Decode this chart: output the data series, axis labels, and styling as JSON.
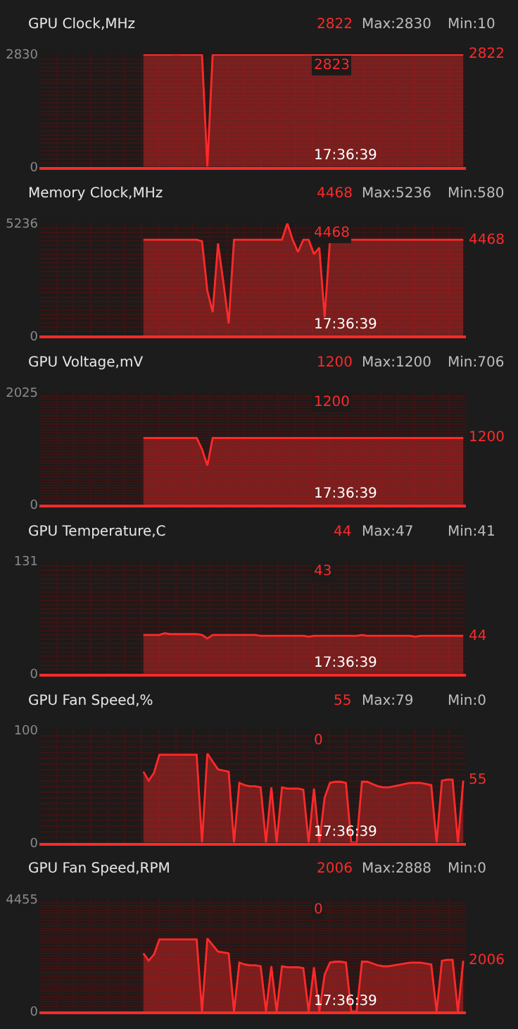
{
  "chart_data": [
    {
      "type": "area",
      "title": "GPU Clock,MHz",
      "tick_labels": "y",
      "grid": true,
      "color": "#ff2a2a",
      "ylim": [
        0,
        2830
      ],
      "yticks": [
        0,
        2830
      ],
      "categories": [
        null,
        null,
        null,
        null,
        null,
        null,
        null,
        null,
        null,
        null,
        null,
        null,
        null,
        null,
        null,
        null,
        null,
        null,
        null,
        null,
        null,
        null,
        null,
        null,
        null,
        null,
        null,
        null,
        null,
        null,
        null,
        null,
        null,
        null,
        null,
        null,
        null,
        null,
        null,
        null,
        null,
        null,
        null,
        null,
        null,
        null,
        null,
        null,
        null,
        null,
        null,
        null,
        null,
        null,
        null,
        null,
        null,
        null,
        null,
        null,
        null,
        null,
        null,
        null,
        null,
        null,
        null,
        null,
        null,
        null,
        null,
        null,
        null,
        null,
        null,
        null,
        null,
        null,
        null,
        null
      ],
      "values": [
        null,
        null,
        null,
        null,
        null,
        null,
        null,
        null,
        null,
        null,
        null,
        null,
        null,
        null,
        null,
        null,
        null,
        null,
        null,
        2822,
        2822,
        2822,
        2822,
        2822,
        2822,
        2830,
        2822,
        2822,
        2822,
        2822,
        2822,
        10,
        2822,
        2822,
        2822,
        2822,
        2822,
        2822,
        2822,
        2822,
        2822,
        2822,
        2822,
        2822,
        2822,
        2822,
        2822,
        2822,
        2822,
        2822,
        2823,
        2822,
        2822,
        2822,
        2822,
        2822,
        2822,
        2822,
        2822,
        2822,
        2822,
        2822,
        2822,
        2822,
        2822,
        2822,
        2822,
        2822,
        2822,
        2822,
        2822,
        2822,
        2822,
        2822,
        2822,
        2822,
        2822,
        2822,
        2822,
        2822
      ],
      "value_labels": [
        null,
        null,
        null,
        null,
        null,
        null,
        null,
        null,
        null,
        null,
        null,
        null,
        null,
        null,
        null,
        null,
        null,
        null,
        null,
        null,
        null,
        null,
        null,
        null,
        null,
        null,
        null,
        null,
        null,
        null,
        null,
        null,
        null,
        null,
        null,
        null,
        null,
        null,
        null,
        null,
        null,
        null,
        null,
        null,
        null,
        null,
        null,
        null,
        null,
        null,
        null,
        null,
        null,
        null,
        null,
        null,
        null,
        null,
        null,
        null,
        null,
        null,
        null,
        null,
        null,
        null,
        null,
        null,
        null,
        null,
        null,
        null,
        null,
        null,
        null,
        null,
        null,
        null,
        null,
        "2822"
      ],
      "annotations": [
        "2822",
        "Max:2830",
        "Min:10",
        "2823",
        "17:36:39"
      ]
    },
    {
      "type": "area",
      "title": "Memory Clock,MHz",
      "tick_labels": "y",
      "grid": true,
      "color": "#ff2a2a",
      "ylim": [
        0,
        5236
      ],
      "yticks": [
        0,
        5236
      ],
      "categories": [
        null,
        null,
        null,
        null,
        null,
        null,
        null,
        null,
        null,
        null,
        null,
        null,
        null,
        null,
        null,
        null,
        null,
        null,
        null,
        null,
        null,
        null,
        null,
        null,
        null,
        null,
        null,
        null,
        null,
        null,
        null,
        null,
        null,
        null,
        null,
        null,
        null,
        null,
        null,
        null,
        null,
        null,
        null,
        null,
        null,
        null,
        null,
        null,
        null,
        null,
        null,
        null,
        null,
        null,
        null,
        null,
        null,
        null,
        null,
        null,
        null,
        null,
        null,
        null,
        null,
        null,
        null,
        null,
        null,
        null,
        null,
        null,
        null,
        null,
        null,
        null,
        null,
        null,
        null,
        null
      ],
      "values": [
        null,
        null,
        null,
        null,
        null,
        null,
        null,
        null,
        null,
        null,
        null,
        null,
        null,
        null,
        null,
        null,
        null,
        null,
        null,
        4468,
        4468,
        4468,
        4468,
        4468,
        4468,
        4468,
        4468,
        4468,
        4468,
        4468,
        4400,
        2100,
        1100,
        4300,
        2500,
        580,
        4468,
        4468,
        4468,
        4468,
        4468,
        4468,
        4468,
        4468,
        4468,
        4468,
        5236,
        4468,
        3900,
        4468,
        4468,
        3800,
        4100,
        870,
        4468,
        4468,
        4468,
        4468,
        4468,
        4468,
        4468,
        4468,
        4468,
        4468,
        4468,
        4468,
        4468,
        4468,
        4468,
        4468,
        4468,
        4468,
        4468,
        4468,
        4468,
        4468,
        4468,
        4468,
        4468,
        4468
      ],
      "value_labels": [
        null,
        null,
        null,
        null,
        null,
        null,
        null,
        null,
        null,
        null,
        null,
        null,
        null,
        null,
        null,
        null,
        null,
        null,
        null,
        null,
        null,
        null,
        null,
        null,
        null,
        null,
        null,
        null,
        null,
        null,
        null,
        null,
        null,
        null,
        null,
        null,
        null,
        null,
        null,
        null,
        null,
        null,
        null,
        null,
        null,
        null,
        null,
        null,
        null,
        null,
        null,
        null,
        null,
        null,
        null,
        null,
        null,
        null,
        null,
        null,
        null,
        null,
        null,
        null,
        null,
        null,
        null,
        null,
        null,
        null,
        null,
        null,
        null,
        null,
        null,
        null,
        null,
        null,
        null,
        "4468"
      ],
      "annotations": [
        "4468",
        "Max:5236",
        "Min:580",
        "4468",
        "17:36:39"
      ]
    },
    {
      "type": "area",
      "title": "GPU Voltage,mV",
      "tick_labels": "y",
      "grid": true,
      "color": "#ff2a2a",
      "ylim": [
        0,
        2025
      ],
      "yticks": [
        0,
        2025
      ],
      "categories": [
        null,
        null,
        null,
        null,
        null,
        null,
        null,
        null,
        null,
        null,
        null,
        null,
        null,
        null,
        null,
        null,
        null,
        null,
        null,
        null,
        null,
        null,
        null,
        null,
        null,
        null,
        null,
        null,
        null,
        null,
        null,
        null,
        null,
        null,
        null,
        null,
        null,
        null,
        null,
        null,
        null,
        null,
        null,
        null,
        null,
        null,
        null,
        null,
        null,
        null,
        null,
        null,
        null,
        null,
        null,
        null,
        null,
        null,
        null,
        null,
        null,
        null,
        null,
        null,
        null,
        null,
        null,
        null,
        null,
        null,
        null,
        null,
        null,
        null,
        null,
        null,
        null,
        null,
        null,
        null
      ],
      "values": [
        null,
        null,
        null,
        null,
        null,
        null,
        null,
        null,
        null,
        null,
        null,
        null,
        null,
        null,
        null,
        null,
        null,
        null,
        null,
        1200,
        1200,
        1200,
        1200,
        1200,
        1200,
        1200,
        1200,
        1200,
        1200,
        1200,
        1000,
        706,
        1200,
        1200,
        1200,
        1200,
        1200,
        1200,
        1200,
        1200,
        1200,
        1200,
        1200,
        1200,
        1200,
        1200,
        1200,
        1200,
        1200,
        1200,
        1200,
        1200,
        1200,
        1200,
        1200,
        1200,
        1200,
        1200,
        1200,
        1200,
        1200,
        1200,
        1200,
        1200,
        1200,
        1200,
        1200,
        1200,
        1200,
        1200,
        1200,
        1200,
        1200,
        1200,
        1200,
        1200,
        1200,
        1200,
        1200,
        1200
      ],
      "value_labels": [
        null,
        null,
        null,
        null,
        null,
        null,
        null,
        null,
        null,
        null,
        null,
        null,
        null,
        null,
        null,
        null,
        null,
        null,
        null,
        null,
        null,
        null,
        null,
        null,
        null,
        null,
        null,
        null,
        null,
        null,
        null,
        null,
        null,
        null,
        null,
        null,
        null,
        null,
        null,
        null,
        null,
        null,
        null,
        null,
        null,
        null,
        null,
        null,
        null,
        null,
        null,
        null,
        null,
        null,
        null,
        null,
        null,
        null,
        null,
        null,
        null,
        null,
        null,
        null,
        null,
        null,
        null,
        null,
        null,
        null,
        null,
        null,
        null,
        null,
        null,
        null,
        null,
        null,
        null,
        "1200"
      ],
      "annotations": [
        "1200",
        "Max:1200",
        "Min:706",
        "1200",
        "17:36:39"
      ]
    },
    {
      "type": "area",
      "title": "GPU Temperature,C",
      "tick_labels": "y",
      "grid": true,
      "color": "#ff2a2a",
      "ylim": [
        0,
        131
      ],
      "yticks": [
        0,
        131
      ],
      "categories": [
        null,
        null,
        null,
        null,
        null,
        null,
        null,
        null,
        null,
        null,
        null,
        null,
        null,
        null,
        null,
        null,
        null,
        null,
        null,
        null,
        null,
        null,
        null,
        null,
        null,
        null,
        null,
        null,
        null,
        null,
        null,
        null,
        null,
        null,
        null,
        null,
        null,
        null,
        null,
        null,
        null,
        null,
        null,
        null,
        null,
        null,
        null,
        null,
        null,
        null,
        null,
        null,
        null,
        null,
        null,
        null,
        null,
        null,
        null,
        null,
        null,
        null,
        null,
        null,
        null,
        null,
        null,
        null,
        null,
        null,
        null,
        null,
        null,
        null,
        null,
        null,
        null,
        null,
        null,
        null
      ],
      "values": [
        null,
        null,
        null,
        null,
        null,
        null,
        null,
        null,
        null,
        null,
        null,
        null,
        null,
        null,
        null,
        null,
        null,
        null,
        null,
        45,
        45,
        45,
        45,
        47,
        46,
        46,
        46,
        46,
        46,
        46,
        45,
        41,
        45,
        45,
        45,
        45,
        45,
        45,
        45,
        45,
        45,
        44,
        44,
        44,
        44,
        44,
        44,
        44,
        44,
        44,
        43,
        44,
        44,
        44,
        44,
        44,
        44,
        44,
        44,
        44,
        45,
        44,
        44,
        44,
        44,
        44,
        44,
        44,
        44,
        44,
        43,
        44,
        44,
        44,
        44,
        44,
        44,
        44,
        44,
        44
      ],
      "value_labels": [
        null,
        null,
        null,
        null,
        null,
        null,
        null,
        null,
        null,
        null,
        null,
        null,
        null,
        null,
        null,
        null,
        null,
        null,
        null,
        null,
        null,
        null,
        null,
        null,
        null,
        null,
        null,
        null,
        null,
        null,
        null,
        null,
        null,
        null,
        null,
        null,
        null,
        null,
        null,
        null,
        null,
        null,
        null,
        null,
        null,
        null,
        null,
        null,
        null,
        null,
        null,
        null,
        null,
        null,
        null,
        null,
        null,
        null,
        null,
        null,
        null,
        null,
        null,
        null,
        null,
        null,
        null,
        null,
        null,
        null,
        null,
        null,
        null,
        null,
        null,
        null,
        null,
        null,
        null,
        "44"
      ],
      "annotations": [
        "44",
        "Max:47",
        "Min:41",
        "43",
        "17:36:39"
      ]
    },
    {
      "type": "area",
      "title": "GPU Fan Speed,%",
      "tick_labels": "y",
      "grid": true,
      "color": "#ff2a2a",
      "ylim": [
        0,
        100
      ],
      "yticks": [
        0,
        100
      ],
      "categories": [
        null,
        null,
        null,
        null,
        null,
        null,
        null,
        null,
        null,
        null,
        null,
        null,
        null,
        null,
        null,
        null,
        null,
        null,
        null,
        null,
        null,
        null,
        null,
        null,
        null,
        null,
        null,
        null,
        null,
        null,
        null,
        null,
        null,
        null,
        null,
        null,
        null,
        null,
        null,
        null,
        null,
        null,
        null,
        null,
        null,
        null,
        null,
        null,
        null,
        null,
        null,
        null,
        null,
        null,
        null,
        null,
        null,
        null,
        null,
        null,
        null,
        null,
        null,
        null,
        null,
        null,
        null,
        null,
        null,
        null,
        null,
        null,
        null,
        null,
        null,
        null,
        null,
        null,
        null,
        null
      ],
      "values": [
        null,
        null,
        null,
        null,
        null,
        null,
        null,
        null,
        null,
        null,
        null,
        null,
        null,
        null,
        null,
        null,
        null,
        null,
        null,
        63,
        55,
        62,
        78,
        78,
        78,
        78,
        78,
        78,
        78,
        78,
        0,
        79,
        72,
        65,
        64,
        63,
        0,
        53,
        51,
        50,
        50,
        49,
        0,
        49,
        0,
        49,
        48,
        48,
        48,
        47,
        0,
        48,
        0,
        40,
        53,
        54,
        54,
        53,
        0,
        0,
        54,
        54,
        52,
        50,
        49,
        49,
        50,
        51,
        52,
        53,
        53,
        53,
        52,
        51,
        0,
        55,
        56,
        56,
        0,
        55
      ],
      "value_labels": [
        null,
        null,
        null,
        null,
        null,
        null,
        null,
        null,
        null,
        null,
        null,
        null,
        null,
        null,
        null,
        null,
        null,
        null,
        null,
        null,
        null,
        null,
        null,
        null,
        null,
        null,
        null,
        null,
        null,
        null,
        null,
        null,
        null,
        null,
        null,
        null,
        null,
        null,
        null,
        null,
        null,
        null,
        null,
        null,
        null,
        null,
        null,
        null,
        null,
        null,
        null,
        null,
        null,
        null,
        null,
        null,
        null,
        null,
        null,
        null,
        null,
        null,
        null,
        null,
        null,
        null,
        null,
        null,
        null,
        null,
        null,
        null,
        null,
        null,
        null,
        null,
        null,
        null,
        null,
        "55"
      ],
      "annotations": [
        "55",
        "Max:79",
        "Min:0",
        "0",
        "17:36:39"
      ]
    },
    {
      "type": "area",
      "title": "GPU Fan Speed,RPM",
      "tick_labels": "y",
      "grid": true,
      "color": "#ff2a2a",
      "ylim": [
        0,
        4455
      ],
      "yticks": [
        0,
        4455
      ],
      "categories": [
        null,
        null,
        null,
        null,
        null,
        null,
        null,
        null,
        null,
        null,
        null,
        null,
        null,
        null,
        null,
        null,
        null,
        null,
        null,
        null,
        null,
        null,
        null,
        null,
        null,
        null,
        null,
        null,
        null,
        null,
        null,
        null,
        null,
        null,
        null,
        null,
        null,
        null,
        null,
        null,
        null,
        null,
        null,
        null,
        null,
        null,
        null,
        null,
        null,
        null,
        null,
        null,
        null,
        null,
        null,
        null,
        null,
        null,
        null,
        null,
        null,
        null,
        null,
        null,
        null,
        null,
        null,
        null,
        null,
        null,
        null,
        null,
        null,
        null,
        null,
        null,
        null,
        null,
        null,
        null
      ],
      "values": [
        null,
        null,
        null,
        null,
        null,
        null,
        null,
        null,
        null,
        null,
        null,
        null,
        null,
        null,
        null,
        null,
        null,
        null,
        null,
        2300,
        2010,
        2260,
        2850,
        2850,
        2850,
        2850,
        2850,
        2850,
        2850,
        2850,
        0,
        2888,
        2630,
        2370,
        2340,
        2300,
        0,
        1935,
        1860,
        1825,
        1825,
        1790,
        0,
        1790,
        0,
        1790,
        1750,
        1750,
        1750,
        1715,
        0,
        1750,
        0,
        1460,
        1935,
        1970,
        1970,
        1935,
        0,
        0,
        1970,
        1970,
        1900,
        1825,
        1790,
        1790,
        1825,
        1860,
        1900,
        1935,
        1935,
        1935,
        1900,
        1860,
        0,
        2010,
        2045,
        2045,
        0,
        2006
      ],
      "value_labels": [
        null,
        null,
        null,
        null,
        null,
        null,
        null,
        null,
        null,
        null,
        null,
        null,
        null,
        null,
        null,
        null,
        null,
        null,
        null,
        null,
        null,
        null,
        null,
        null,
        null,
        null,
        null,
        null,
        null,
        null,
        null,
        null,
        null,
        null,
        null,
        null,
        null,
        null,
        null,
        null,
        null,
        null,
        null,
        null,
        null,
        null,
        null,
        null,
        null,
        null,
        null,
        null,
        null,
        null,
        null,
        null,
        null,
        null,
        null,
        null,
        null,
        null,
        null,
        null,
        null,
        null,
        null,
        null,
        null,
        null,
        null,
        null,
        null,
        null,
        null,
        null,
        null,
        null,
        null,
        "2006"
      ],
      "annotations": [
        "2006",
        "Max:2888",
        "Min:0",
        "0",
        "17:36:39"
      ]
    }
  ]
}
